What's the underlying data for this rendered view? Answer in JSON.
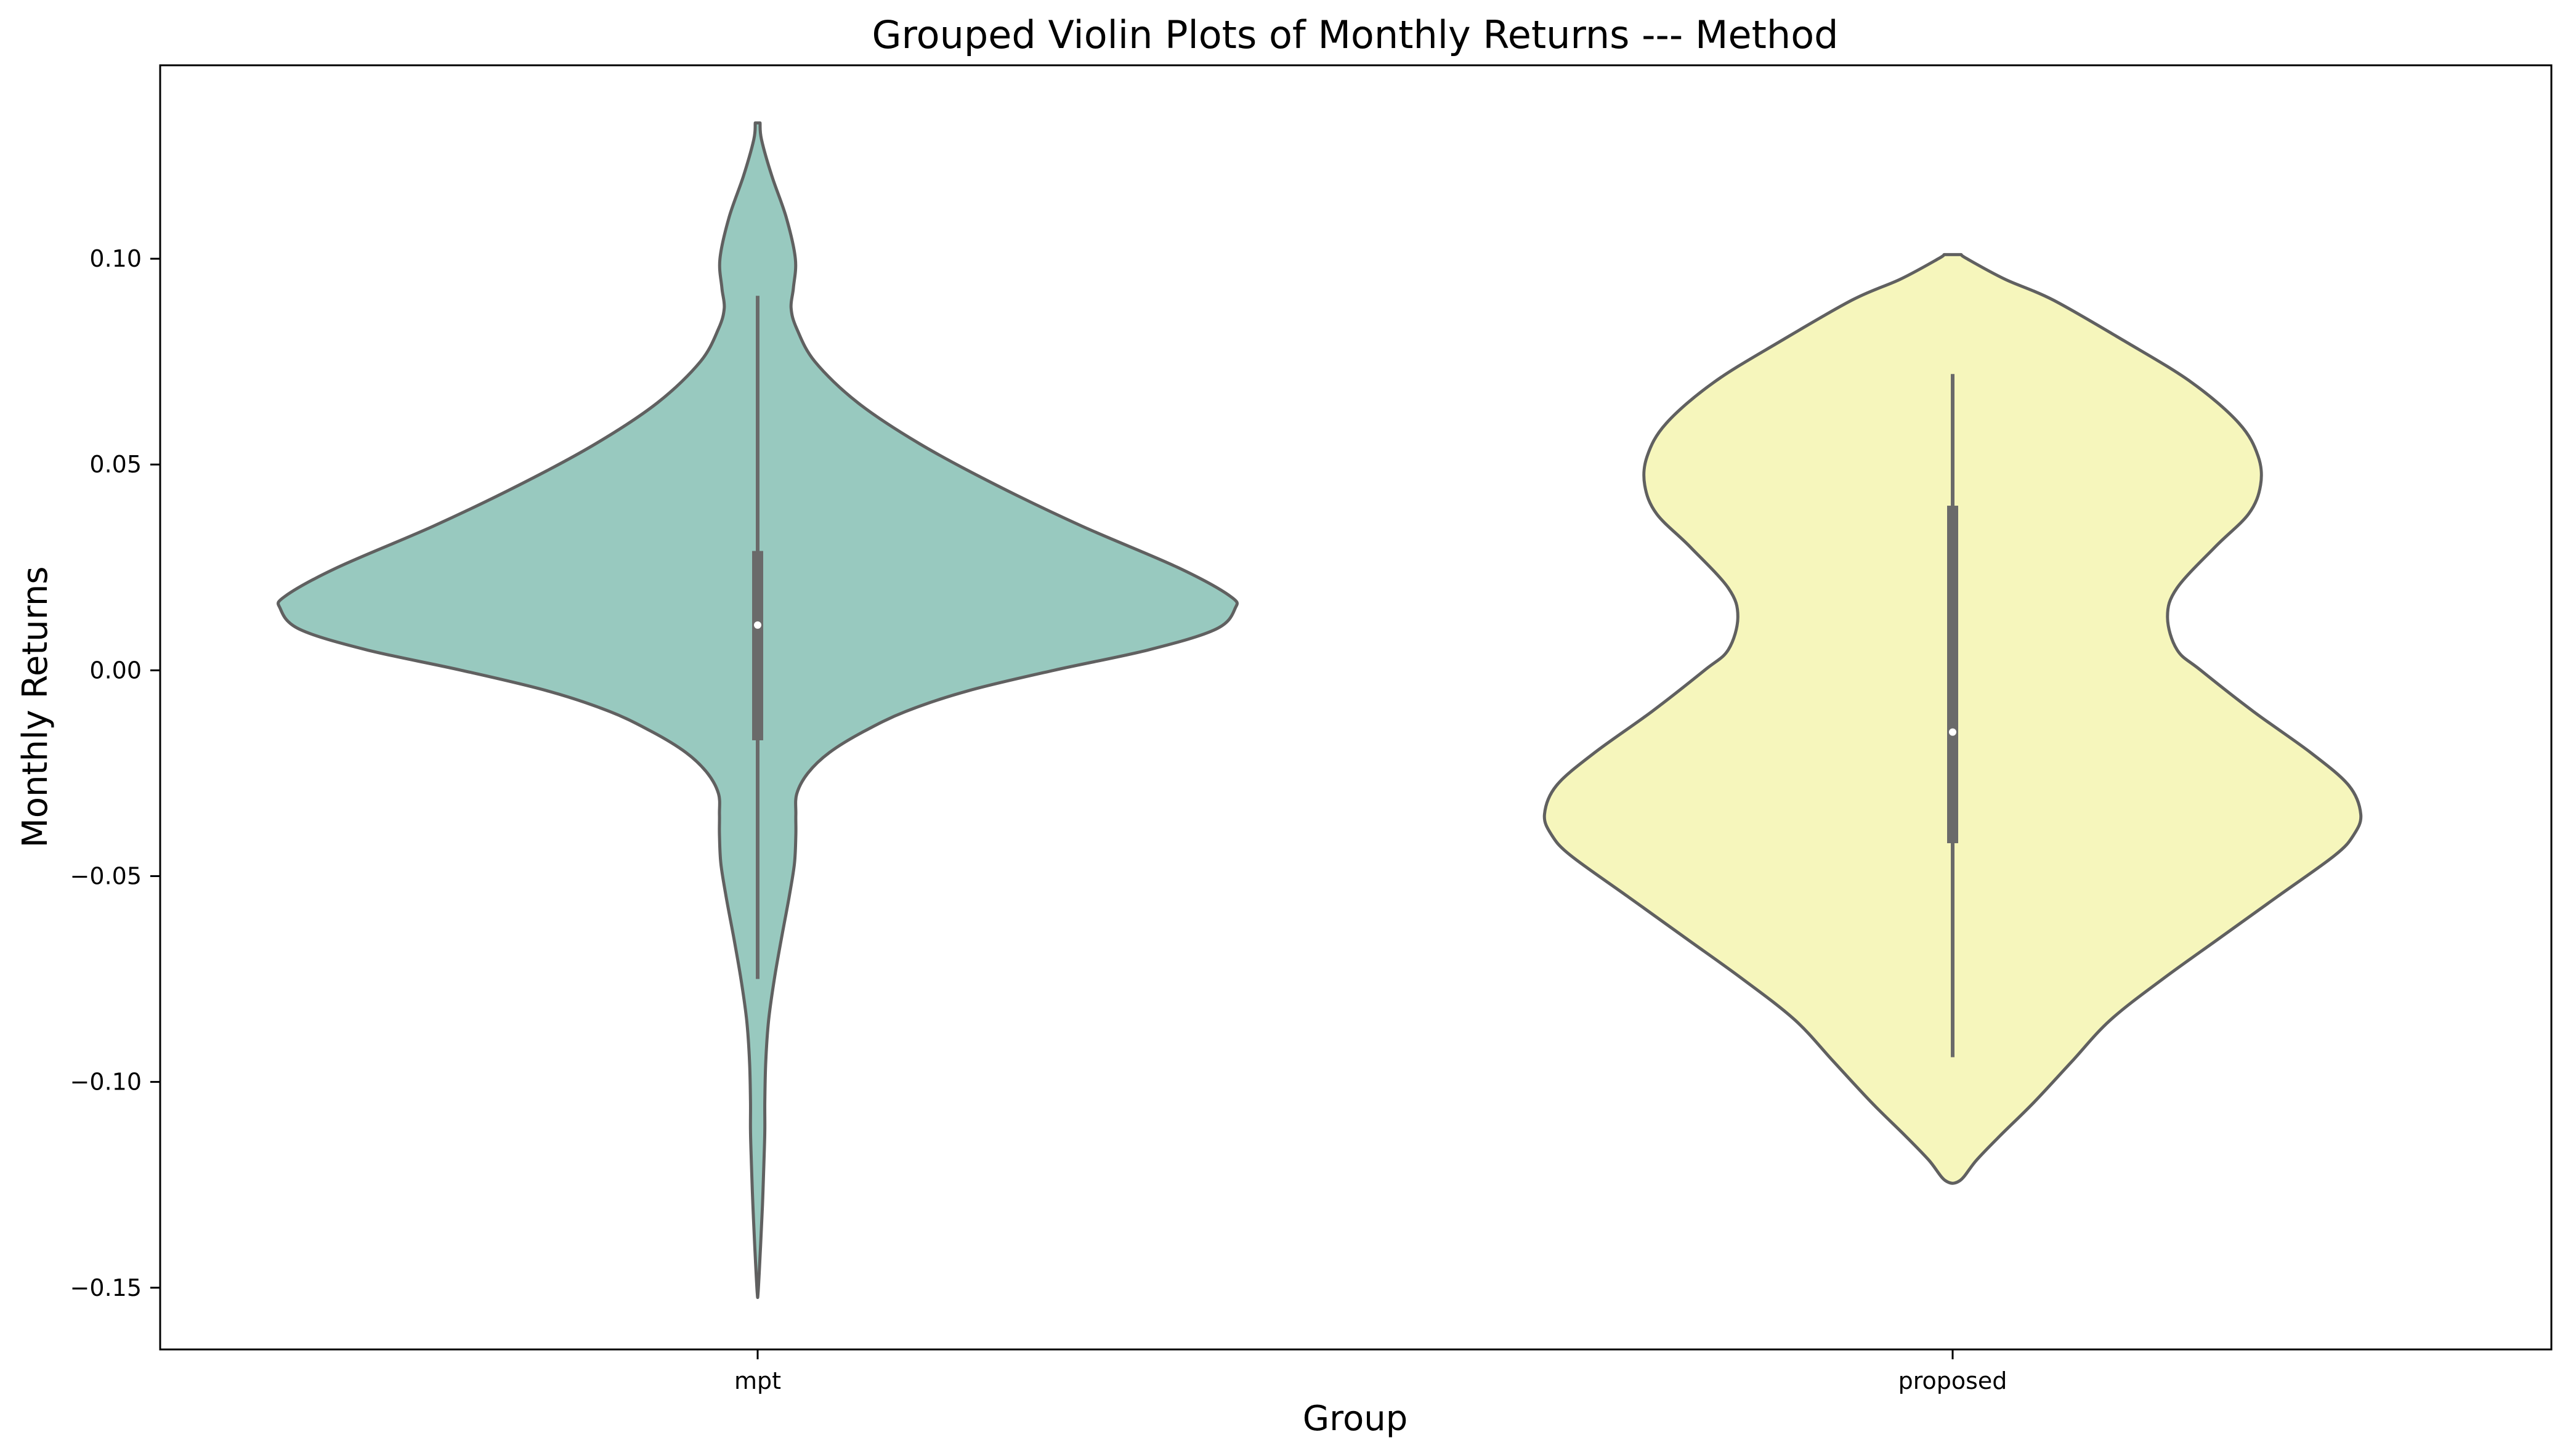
{
  "chart_data": {
    "type": "violin",
    "title": "Grouped Violin Plots of Monthly Returns --- Method",
    "xlabel": "Group",
    "ylabel": "Monthly Returns",
    "ylim": [
      -0.165,
      0.147
    ],
    "yticks": [
      -0.15,
      -0.1,
      -0.05,
      0.0,
      0.05,
      0.1
    ],
    "ytick_labels": [
      "−0.15",
      "−0.10",
      "−0.05",
      "0.00",
      "0.05",
      "0.10"
    ],
    "categories": [
      "mpt",
      "proposed"
    ],
    "grid": false,
    "colors": {
      "mpt": "#98c9bf",
      "proposed": "#f6f6bc",
      "outline": "#606060",
      "box": "#6a6a6a"
    },
    "groups": [
      {
        "name": "mpt",
        "summary": {
          "min": -0.075,
          "q1": -0.017,
          "median": 0.011,
          "q3": 0.029,
          "max": 0.091
        },
        "density_range": [
          -0.151,
          0.133
        ],
        "density_profile": [
          [
            0.133,
            0.005
          ],
          [
            0.129,
            0.008
          ],
          [
            0.12,
            0.03
          ],
          [
            0.11,
            0.06
          ],
          [
            0.1,
            0.079
          ],
          [
            0.093,
            0.075
          ],
          [
            0.088,
            0.07
          ],
          [
            0.083,
            0.082
          ],
          [
            0.075,
            0.12
          ],
          [
            0.065,
            0.21
          ],
          [
            0.055,
            0.34
          ],
          [
            0.045,
            0.5
          ],
          [
            0.035,
            0.68
          ],
          [
            0.025,
            0.88
          ],
          [
            0.018,
            0.99
          ],
          [
            0.015,
            1.0
          ],
          [
            0.01,
            0.96
          ],
          [
            0.005,
            0.82
          ],
          [
            0.0,
            0.62
          ],
          [
            -0.005,
            0.44
          ],
          [
            -0.01,
            0.31
          ],
          [
            -0.015,
            0.22
          ],
          [
            -0.02,
            0.15
          ],
          [
            -0.025,
            0.105
          ],
          [
            -0.03,
            0.082
          ],
          [
            -0.035,
            0.08
          ],
          [
            -0.04,
            0.08
          ],
          [
            -0.047,
            0.077
          ],
          [
            -0.055,
            0.066
          ],
          [
            -0.065,
            0.05
          ],
          [
            -0.075,
            0.035
          ],
          [
            -0.085,
            0.023
          ],
          [
            -0.095,
            0.017
          ],
          [
            -0.105,
            0.015
          ],
          [
            -0.112,
            0.015
          ],
          [
            -0.12,
            0.013
          ],
          [
            -0.13,
            0.01
          ],
          [
            -0.14,
            0.006
          ],
          [
            -0.151,
            0.001
          ]
        ]
      },
      {
        "name": "proposed",
        "summary": {
          "min": -0.094,
          "q1": -0.042,
          "median": -0.015,
          "q3": 0.04,
          "max": 0.072
        },
        "density_range": [
          -0.124,
          0.101
        ],
        "density_profile": [
          [
            0.101,
            0.018
          ],
          [
            0.1,
            0.03
          ],
          [
            0.095,
            0.11
          ],
          [
            0.09,
            0.21
          ],
          [
            0.08,
            0.36
          ],
          [
            0.07,
            0.5
          ],
          [
            0.06,
            0.6
          ],
          [
            0.052,
            0.64
          ],
          [
            0.045,
            0.645
          ],
          [
            0.038,
            0.62
          ],
          [
            0.03,
            0.55
          ],
          [
            0.02,
            0.47
          ],
          [
            0.013,
            0.45
          ],
          [
            0.005,
            0.47
          ],
          [
            0.0,
            0.52
          ],
          [
            -0.01,
            0.63
          ],
          [
            -0.02,
            0.75
          ],
          [
            -0.028,
            0.83
          ],
          [
            -0.035,
            0.855
          ],
          [
            -0.04,
            0.84
          ],
          [
            -0.045,
            0.8
          ],
          [
            -0.055,
            0.68
          ],
          [
            -0.065,
            0.56
          ],
          [
            -0.075,
            0.44
          ],
          [
            -0.085,
            0.33
          ],
          [
            -0.095,
            0.25
          ],
          [
            -0.105,
            0.17
          ],
          [
            -0.113,
            0.1
          ],
          [
            -0.119,
            0.05
          ],
          [
            -0.124,
            0.015
          ]
        ]
      }
    ]
  }
}
